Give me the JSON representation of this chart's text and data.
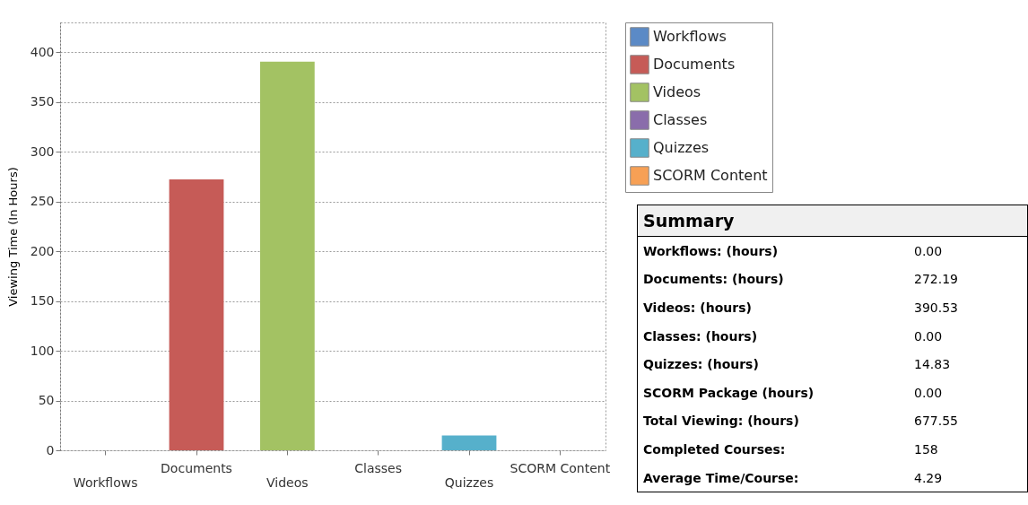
{
  "chart_data": {
    "type": "bar",
    "ylabel": "Viewing Time (In Hours)",
    "categories": [
      "Workflows",
      "Documents",
      "Videos",
      "Classes",
      "Quizzes",
      "SCORM Content"
    ],
    "series": [
      {
        "name": "Workflows",
        "color": "#5b8ac6",
        "values": [
          0.0,
          null,
          null,
          null,
          null,
          null
        ]
      },
      {
        "name": "Documents",
        "color": "#c65b57",
        "values": [
          null,
          272.19,
          null,
          null,
          null,
          null
        ]
      },
      {
        "name": "Videos",
        "color": "#a3c263",
        "values": [
          null,
          null,
          390.53,
          null,
          null,
          null
        ]
      },
      {
        "name": "Classes",
        "color": "#8a6dab",
        "values": [
          null,
          null,
          null,
          0.0,
          null,
          null
        ]
      },
      {
        "name": "Quizzes",
        "color": "#56b0cb",
        "values": [
          null,
          null,
          null,
          null,
          14.83,
          null
        ]
      },
      {
        "name": "SCORM Content",
        "color": "#f7a055",
        "values": [
          null,
          null,
          null,
          null,
          null,
          0.0
        ]
      }
    ],
    "ylim": [
      0,
      430
    ],
    "yticks": [
      0,
      50,
      100,
      150,
      200,
      250,
      300,
      350,
      400
    ],
    "grid": "y",
    "legend": "top right",
    "annotations": [
      "Summary",
      "Workflows: (hours)",
      "0.00",
      "Documents: (hours)",
      "272.19",
      "Videos: (hours)",
      "390.53",
      "Classes: (hours)",
      "0.00",
      "Quizzes: (hours)",
      "14.83",
      "SCORM Package (hours)",
      "0.00",
      "Total Viewing: (hours)",
      "677.55",
      "Completed Courses:",
      "158",
      "Average Time/Course:",
      "4.29"
    ]
  }
}
